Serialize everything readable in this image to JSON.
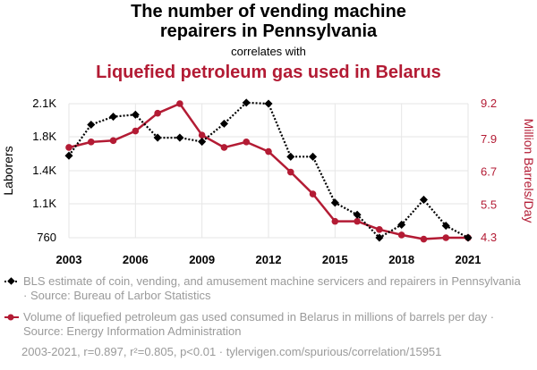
{
  "titles": {
    "line1": "The number of vending machine",
    "line2": "repairers in Pennsylvania",
    "correlates": "correlates with",
    "line3": "Liquefied petroleum gas used in Belarus"
  },
  "legend": {
    "series1": "BLS estimate of coin, vending, and amusement machine servicers and repairers in Pennsylvania · Source: Bureau of Larbor Statistics",
    "series2": "Volume of liquefied petroleum gas used consumed in Belarus in millions of barrels per day · Source: Energy Information Administration"
  },
  "footer": "2003-2021, r=0.897, r²=0.805, p<0.01 · tylervigen.com/spurious/correlation/15951",
  "colors": {
    "series1": "#000000",
    "series2": "#b31b34",
    "grid": "#e6e6e6"
  },
  "chart_data": {
    "type": "line",
    "x": [
      2003,
      2004,
      2005,
      2006,
      2007,
      2008,
      2009,
      2010,
      2011,
      2012,
      2013,
      2014,
      2015,
      2016,
      2017,
      2018,
      2019,
      2020,
      2021
    ],
    "xticks": [
      2003,
      2006,
      2009,
      2012,
      2015,
      2018,
      2021
    ],
    "xlim": [
      2003,
      2021
    ],
    "ylabel_left": "Laborers",
    "ylabel_right": "Million Barrels/Day",
    "yticks_left": [
      {
        "value": 760,
        "label": "760"
      },
      {
        "value": 1100,
        "label": "1.1K"
      },
      {
        "value": 1430,
        "label": "1.4K"
      },
      {
        "value": 1770,
        "label": "1.8K"
      },
      {
        "value": 2100,
        "label": "2.1K"
      }
    ],
    "ylim_left": [
      760,
      2100
    ],
    "yticks_right": [
      {
        "value": 4.3,
        "label": "4.3"
      },
      {
        "value": 5.5,
        "label": "5.5"
      },
      {
        "value": 6.7,
        "label": "6.7"
      },
      {
        "value": 7.9,
        "label": "7.9"
      },
      {
        "value": 9.2,
        "label": "9.2"
      }
    ],
    "ylim_right": [
      4.3,
      9.2
    ],
    "grid": true,
    "series": [
      {
        "axis": "left",
        "style": "dotted-diamond",
        "values": [
          1580,
          1890,
          1970,
          1990,
          1760,
          1760,
          1720,
          1900,
          2110,
          2100,
          1570,
          1570,
          1110,
          990,
          760,
          890,
          1140,
          880,
          760
        ]
      },
      {
        "axis": "right",
        "style": "solid-circle",
        "values": [
          7.6,
          7.8,
          7.85,
          8.2,
          8.85,
          9.2,
          8.05,
          7.6,
          7.8,
          7.45,
          6.7,
          5.9,
          4.9,
          4.9,
          4.6,
          4.4,
          4.25,
          4.3,
          4.3
        ]
      }
    ]
  }
}
